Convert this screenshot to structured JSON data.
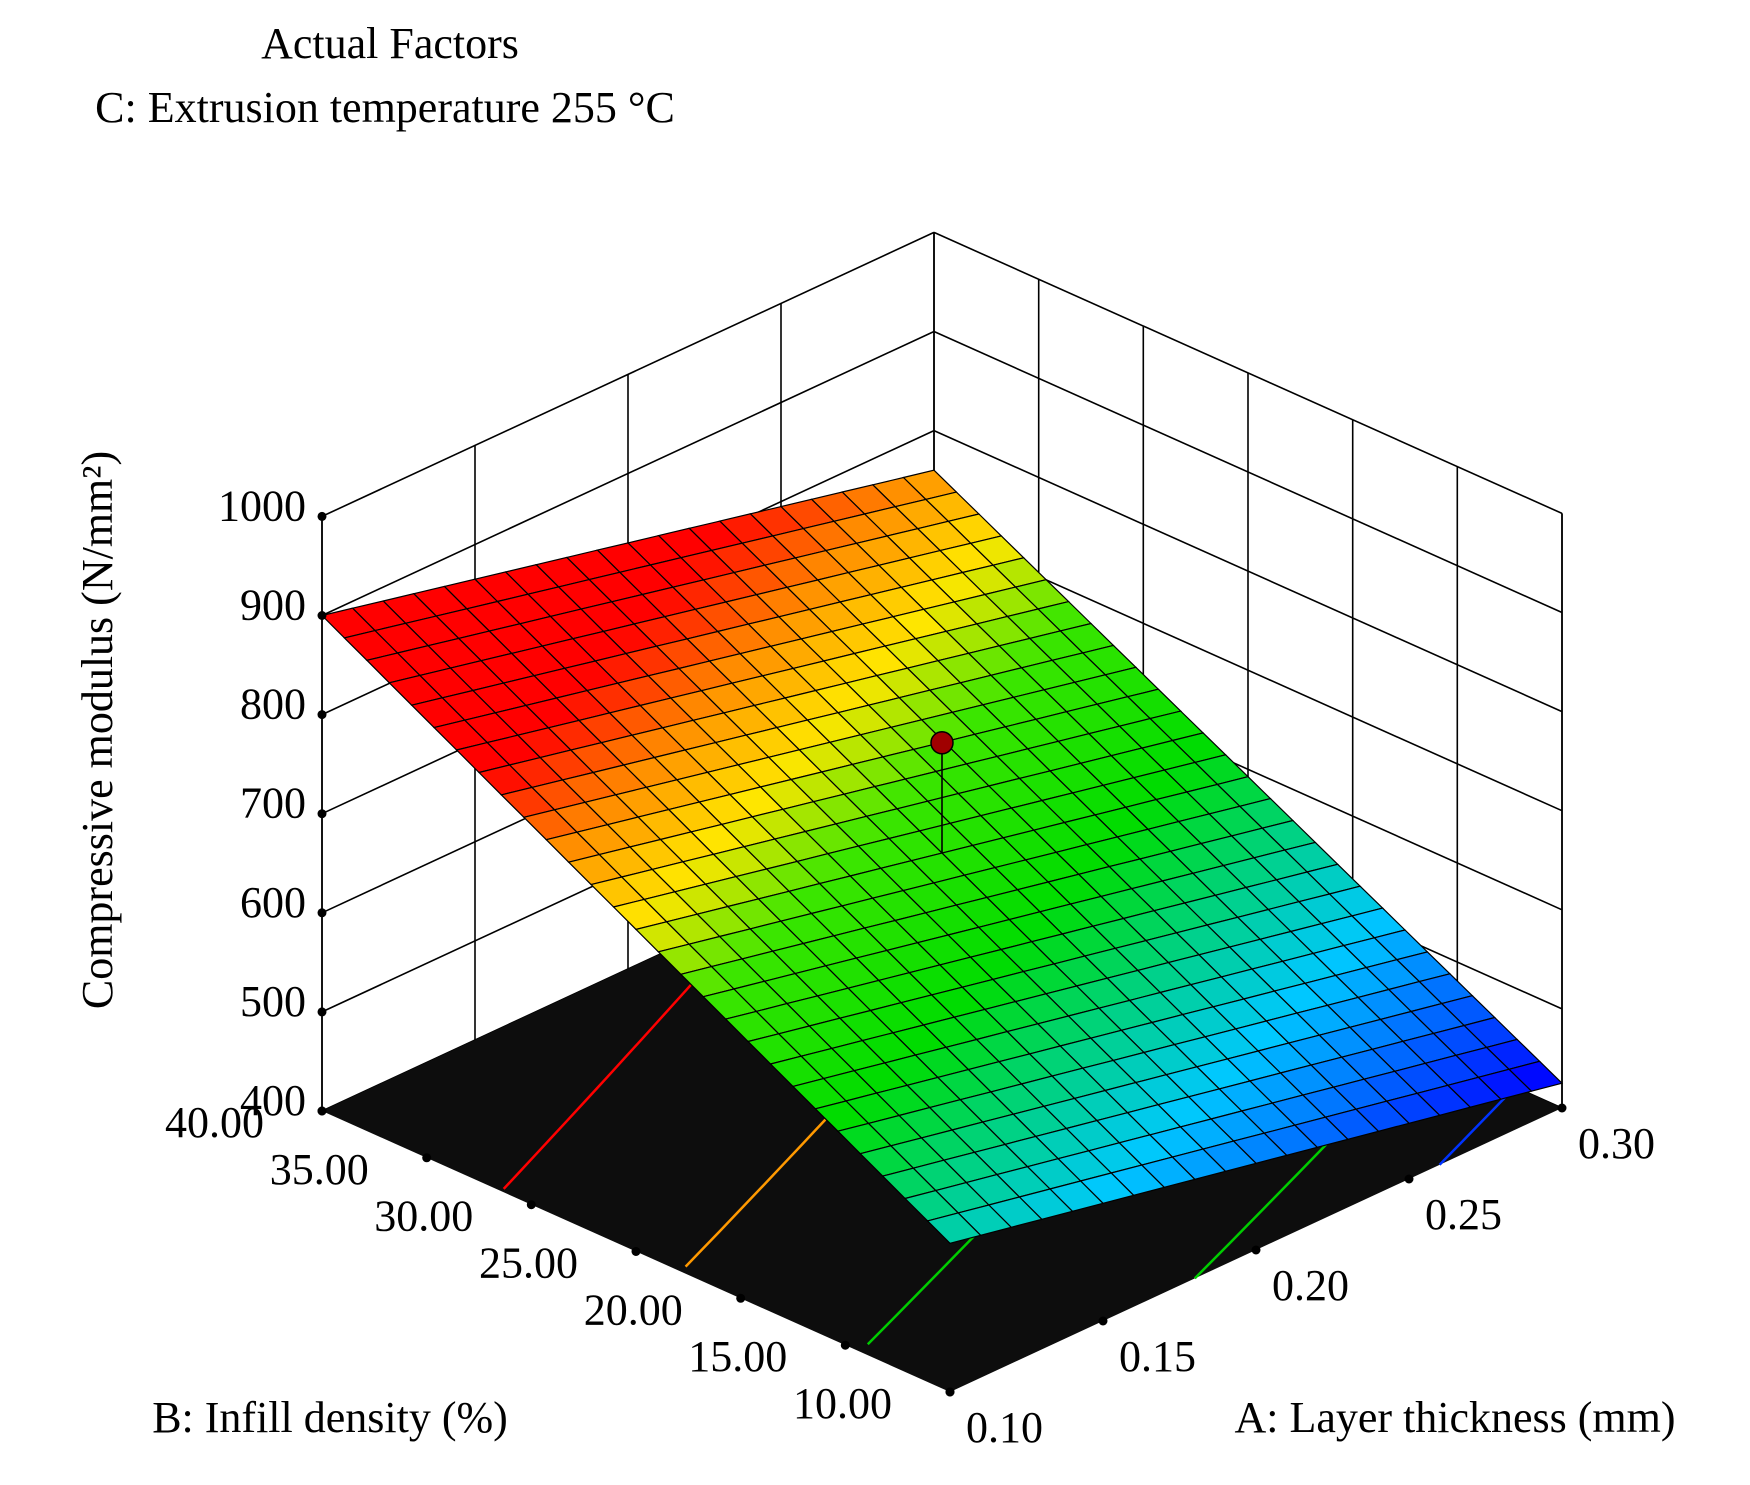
{
  "chart_data": {
    "type": "surface3d",
    "header": {
      "line1": "Actual Factors",
      "line2": "C: Extrusion temperature 255 °C"
    },
    "zlabel": "Compressive modulus (N/mm²)",
    "xlabel": "A: Layer thickness (mm)",
    "ylabel": "B: Infill density (%)",
    "x_ticks": [
      "0.10",
      "0.15",
      "0.20",
      "0.25",
      "0.30"
    ],
    "x_range": [
      0.1,
      0.3
    ],
    "y_ticks": [
      "10.00",
      "15.00",
      "20.00",
      "25.00",
      "30.00",
      "35.00",
      "40.00"
    ],
    "y_range": [
      10,
      40
    ],
    "z_ticks": [
      "400",
      "500",
      "600",
      "700",
      "800",
      "900",
      "1000"
    ],
    "z_range": [
      400,
      1000
    ],
    "surface_corners": {
      "x_min_y_min": 550,
      "x_max_y_min": 425,
      "x_min_y_max": 900,
      "x_max_y_max": 760
    },
    "contour_levels": [
      {
        "value": 800,
        "color": "#ff0000"
      },
      {
        "value": 700,
        "color": "#ff9900"
      },
      {
        "value": 600,
        "color": "#00cc00"
      },
      {
        "value": 500,
        "color": "#00cc00"
      },
      {
        "value": 450,
        "color": "#0033ff"
      }
    ],
    "design_point": {
      "x": 0.2,
      "y": 25.0,
      "z": 770,
      "color": "#a00000"
    },
    "colors": {
      "floor": "#0d0d0d",
      "low": "#0000ff",
      "mid": "#00e000",
      "high": "#ff0000"
    }
  }
}
